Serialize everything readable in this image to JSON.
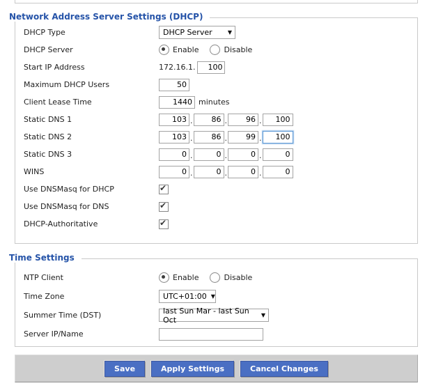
{
  "colors": {
    "section_title": "#2553a8",
    "button_bg": "#4a6fc3",
    "button_text": "#ffffff",
    "bar_bg": "#cecece",
    "focus_border": "#5e9ad6"
  },
  "icons": {
    "chevron_down": "▼"
  },
  "dhcp": {
    "title": "Network Address Server Settings (DHCP)",
    "dhcp_type": {
      "label": "DHCP Type",
      "value": "DHCP Server"
    },
    "dhcp_server": {
      "label": "DHCP Server",
      "options": [
        "Enable",
        "Disable"
      ],
      "selected": "Enable"
    },
    "start_ip": {
      "label": "Start IP Address",
      "prefix": "172.16.1.",
      "value": "100"
    },
    "max_users": {
      "label": "Maximum DHCP Users",
      "value": "50"
    },
    "lease": {
      "label": "Client Lease Time",
      "value": "1440",
      "suffix": "minutes"
    },
    "dns1": {
      "label": "Static DNS 1",
      "octets": [
        "103",
        "86",
        "96",
        "100"
      ]
    },
    "dns2": {
      "label": "Static DNS 2",
      "octets": [
        "103",
        "86",
        "99",
        "100"
      ],
      "focused_octet": 3
    },
    "dns3": {
      "label": "Static DNS 3",
      "octets": [
        "0",
        "0",
        "0",
        "0"
      ]
    },
    "wins": {
      "label": "WINS",
      "octets": [
        "0",
        "0",
        "0",
        "0"
      ]
    },
    "dnsmasq_dhcp": {
      "label": "Use DNSMasq for DHCP",
      "checked": true
    },
    "dnsmasq_dns": {
      "label": "Use DNSMasq for DNS",
      "checked": true
    },
    "authoritative": {
      "label": "DHCP-Authoritative",
      "checked": true
    },
    "octet_separator": "."
  },
  "time": {
    "title": "Time Settings",
    "ntp": {
      "label": "NTP Client",
      "options": [
        "Enable",
        "Disable"
      ],
      "selected": "Enable"
    },
    "timezone": {
      "label": "Time Zone",
      "value": "UTC+01:00"
    },
    "dst": {
      "label": "Summer Time (DST)",
      "value": "last Sun Mar - last Sun Oct"
    },
    "server": {
      "label": "Server IP/Name",
      "value": ""
    }
  },
  "footer": {
    "save": "Save",
    "apply": "Apply Settings",
    "cancel": "Cancel Changes"
  }
}
